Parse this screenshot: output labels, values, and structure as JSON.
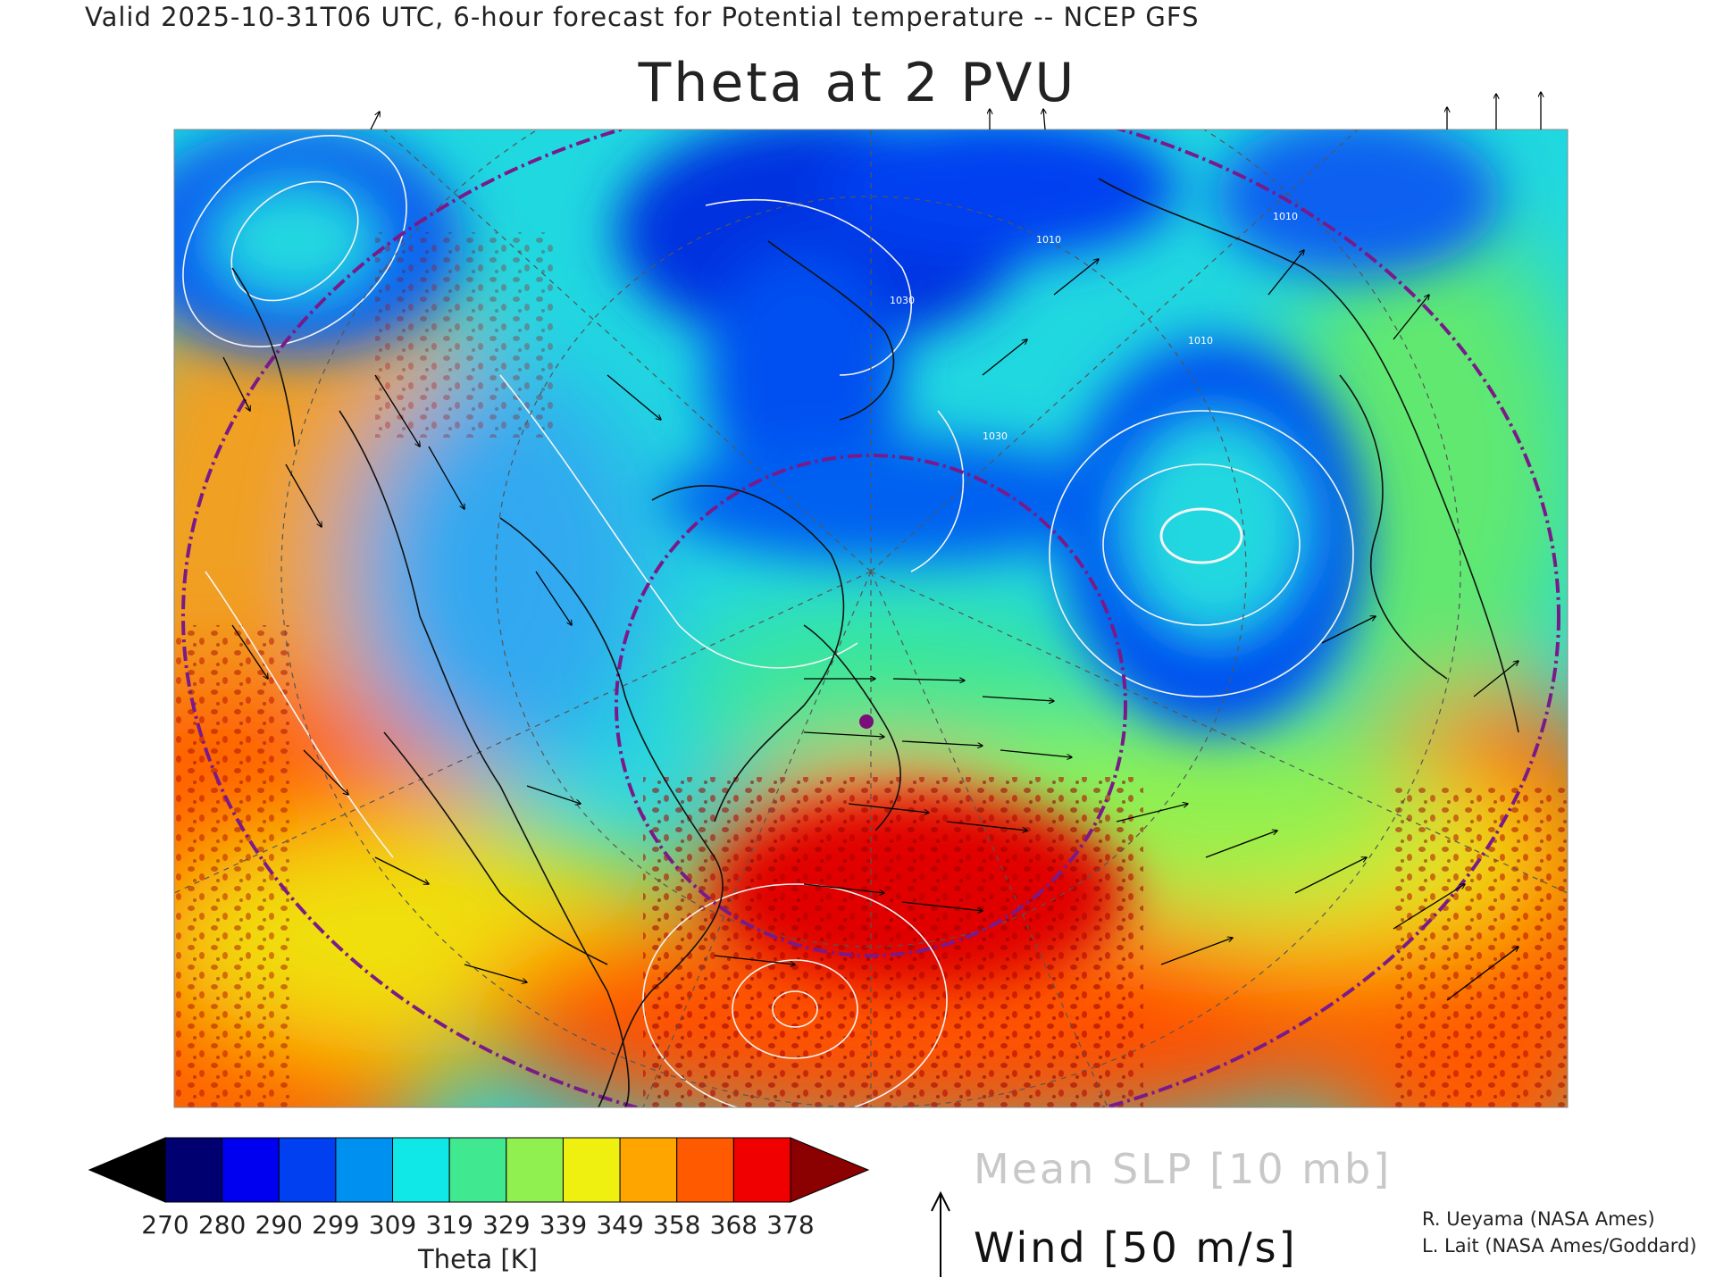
{
  "header": {
    "valid_line": "Valid 2025-10-31T06 UTC, 6-hour forecast for Potential temperature -- NCEP GFS",
    "title": "Theta at 2 PVU"
  },
  "map": {
    "variable": "Potential temperature on the 2 PVU surface",
    "contours": "Mean sea-level pressure, 10 mb interval (white lines)",
    "contour_labels": [
      "1010",
      "1010",
      "1030",
      "1030",
      "1010"
    ],
    "marker_color": "#7a0f7a"
  },
  "colorbar": {
    "under_color": "#000000",
    "over_color": "#8b0000",
    "colors": [
      "#000070",
      "#0000f0",
      "#0040f0",
      "#0090f0",
      "#10e8e8",
      "#40e890",
      "#90f050",
      "#f0f010",
      "#ffa500",
      "#ff5a00",
      "#f00000"
    ],
    "ticks": [
      "270",
      "280",
      "290",
      "299",
      "309",
      "319",
      "329",
      "339",
      "349",
      "358",
      "368",
      "378"
    ],
    "title": "Theta [K]"
  },
  "legend": {
    "slp_label": "Mean SLP [10 mb]",
    "wind_label": "Wind [50 m/s]"
  },
  "credits": {
    "line1": "R. Ueyama (NASA Ames)",
    "line2": "L. Lait (NASA Ames/Goddard)"
  }
}
